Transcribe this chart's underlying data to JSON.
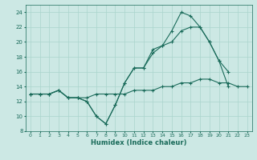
{
  "xlabel": "Humidex (Indice chaleur)",
  "bg_color": "#cce8e4",
  "grid_color": "#aad4cc",
  "line_color": "#1a6b5a",
  "xlim": [
    -0.5,
    23.5
  ],
  "ylim": [
    8,
    25
  ],
  "xticks": [
    0,
    1,
    2,
    3,
    4,
    5,
    6,
    7,
    8,
    9,
    10,
    11,
    12,
    13,
    14,
    15,
    16,
    17,
    18,
    19,
    20,
    21,
    22,
    23
  ],
  "yticks": [
    8,
    10,
    12,
    14,
    16,
    18,
    20,
    22,
    24
  ],
  "hours": [
    0,
    1,
    2,
    3,
    4,
    5,
    6,
    7,
    8,
    9,
    10,
    11,
    12,
    13,
    14,
    15,
    16,
    17,
    18,
    19,
    20,
    21,
    22,
    23
  ],
  "line1": [
    13.0,
    13.0,
    13.0,
    13.5,
    12.5,
    12.5,
    12.0,
    10.0,
    9.0,
    11.5,
    14.5,
    16.5,
    16.5,
    19.0,
    19.5,
    21.5,
    24.0,
    23.5,
    22.0,
    20.0,
    17.5,
    14.0,
    null,
    null
  ],
  "line2": [
    13.0,
    13.0,
    13.0,
    13.5,
    12.5,
    12.5,
    12.0,
    10.0,
    9.0,
    11.5,
    14.5,
    16.5,
    16.5,
    18.5,
    19.5,
    20.0,
    21.5,
    22.0,
    22.0,
    20.0,
    17.5,
    16.0,
    null,
    null
  ],
  "line3": [
    13.0,
    13.0,
    13.0,
    13.5,
    12.5,
    12.5,
    12.5,
    13.0,
    13.0,
    13.0,
    13.0,
    13.5,
    13.5,
    13.5,
    14.0,
    14.0,
    14.5,
    14.5,
    15.0,
    15.0,
    14.5,
    14.5,
    14.0,
    14.0
  ]
}
